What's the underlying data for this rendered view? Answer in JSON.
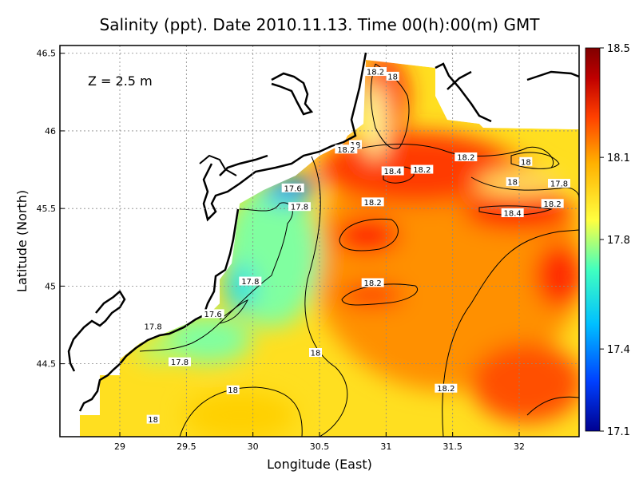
{
  "chart_data": {
    "type": "heatmap",
    "title": "Salinity (ppt). Date 2010.11.13. Time 00(h):00(m) GMT",
    "xlabel": "Longitude (East)",
    "ylabel": "Latitude (North)",
    "annotation": "Z = 2.5 m",
    "xlim": [
      28.55,
      32.45
    ],
    "ylim": [
      44.03,
      46.55
    ],
    "x_ticks": [
      29,
      29.5,
      30,
      30.5,
      31,
      31.5,
      32
    ],
    "x_tick_labels": [
      "29",
      "29.5",
      "30",
      "30.5",
      "31",
      "31.5",
      "32"
    ],
    "y_ticks": [
      44.5,
      45,
      45.5,
      46,
      46.5
    ],
    "y_tick_labels": [
      "44.5",
      "45",
      "45.5",
      "46",
      "46.5"
    ],
    "grid": true,
    "colorbar": {
      "min": 17.1,
      "max": 18.5,
      "ticks": [
        17.1,
        17.4,
        17.8,
        18.1,
        18.5
      ],
      "tick_labels": [
        "17.1",
        "17.4",
        "17.8",
        "18.1",
        "18.5"
      ],
      "colors": [
        "#000090",
        "#0040ff",
        "#00c0ff",
        "#40ffc0",
        "#ffff40",
        "#ffb000",
        "#ff4000",
        "#c00000",
        "#800000"
      ]
    },
    "contour_labels": [
      {
        "lon": 30.92,
        "lat": 46.38,
        "value": "18.2"
      },
      {
        "lon": 31.05,
        "lat": 46.35,
        "value": "18"
      },
      {
        "lon": 30.77,
        "lat": 45.91,
        "value": "18"
      },
      {
        "lon": 30.7,
        "lat": 45.88,
        "value": "18.2"
      },
      {
        "lon": 31.05,
        "lat": 45.74,
        "value": "18.4"
      },
      {
        "lon": 31.27,
        "lat": 45.75,
        "value": "18.2"
      },
      {
        "lon": 31.6,
        "lat": 45.83,
        "value": "18.2"
      },
      {
        "lon": 32.05,
        "lat": 45.8,
        "value": "18"
      },
      {
        "lon": 30.3,
        "lat": 45.63,
        "value": "17.6"
      },
      {
        "lon": 30.35,
        "lat": 45.51,
        "value": "17.8"
      },
      {
        "lon": 30.9,
        "lat": 45.54,
        "value": "18.2"
      },
      {
        "lon": 31.95,
        "lat": 45.67,
        "value": "18"
      },
      {
        "lon": 32.3,
        "lat": 45.66,
        "value": "17.8"
      },
      {
        "lon": 31.95,
        "lat": 45.47,
        "value": "18.4"
      },
      {
        "lon": 32.25,
        "lat": 45.53,
        "value": "18.2"
      },
      {
        "lon": 29.98,
        "lat": 45.03,
        "value": "17.8"
      },
      {
        "lon": 30.9,
        "lat": 45.02,
        "value": "18.2"
      },
      {
        "lon": 29.7,
        "lat": 44.82,
        "value": "17.6"
      },
      {
        "lon": 29.25,
        "lat": 44.74,
        "value": "17.8"
      },
      {
        "lon": 29.45,
        "lat": 44.51,
        "value": "17.8"
      },
      {
        "lon": 30.47,
        "lat": 44.57,
        "value": "18"
      },
      {
        "lon": 29.85,
        "lat": 44.33,
        "value": "18"
      },
      {
        "lon": 31.45,
        "lat": 44.34,
        "value": "18.2"
      },
      {
        "lon": 29.25,
        "lat": 44.14,
        "value": "18"
      }
    ]
  }
}
